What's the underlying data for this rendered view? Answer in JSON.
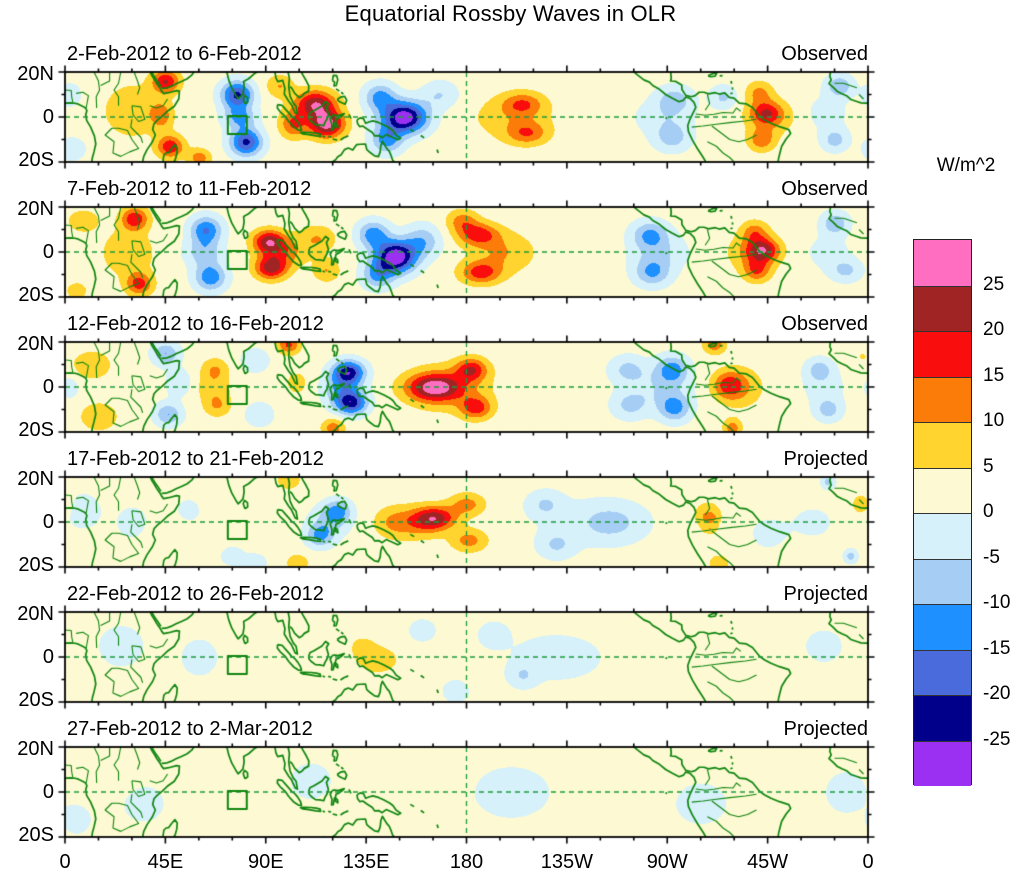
{
  "title": "Equatorial Rossby Waves in OLR",
  "colorbar": {
    "unit_label": "W/m^2",
    "tick_labels_top_to_bottom": [
      "25",
      "20",
      "15",
      "10",
      "5",
      "0",
      "-5",
      "-10",
      "-15",
      "-20",
      "-25"
    ],
    "levels_w_per_m2": [
      -25,
      -20,
      -15,
      -10,
      -5,
      0,
      5,
      10,
      15,
      20,
      25
    ],
    "colors_low_to_high": [
      "#9B30F2",
      "#00008B",
      "#4A6BDB",
      "#1E90FF",
      "#A6CDF4",
      "#D6F1FA",
      "#FDFAD3",
      "#FFD42E",
      "#FB7C08",
      "#FA0D0D",
      "#A12424",
      "#FF6EC0"
    ]
  },
  "axes": {
    "x_tick_labels": [
      "0",
      "45E",
      "90E",
      "135E",
      "180",
      "135W",
      "90W",
      "45W",
      "0"
    ],
    "x_tick_lons": [
      0,
      45,
      90,
      135,
      180,
      225,
      270,
      315,
      360
    ],
    "x_minor_step_deg": 15,
    "y_tick_labels": [
      "20N",
      "0",
      "20S"
    ],
    "y_tick_lats": [
      20,
      0,
      -20
    ],
    "y_minor_lats": [
      10,
      -10
    ],
    "lon_range": [
      0,
      360
    ],
    "lat_range": [
      -20,
      20
    ]
  },
  "map_style": {
    "coastline_color": "#108510",
    "gridline_color": "#1d9b3c",
    "dashed_equator": true,
    "dashed_meridian_lon": 180,
    "region_box": {
      "lon_min": 73,
      "lon_max": 81.5,
      "lat_min": -7.5,
      "lat_max": 0.5
    }
  },
  "chart_data": {
    "type": "heatmap",
    "title": "Equatorial Rossby Waves in OLR",
    "unit": "W/m^2",
    "value_levels": [
      -25,
      -20,
      -15,
      -10,
      -5,
      0,
      5,
      10,
      15,
      20,
      25
    ],
    "anomaly_format": "[lon_deg_east_0_360, lat_deg, amplitude_w_per_m2, sigma_lon_deg, sigma_lat_deg]",
    "panels": [
      {
        "date_range": "2-Feb-2012 to 6-Feb-2012",
        "mode": "Observed",
        "base": 2,
        "anomalies": [
          [
            30,
            3,
            7,
            13,
            12
          ],
          [
            2,
            10,
            -6,
            5,
            5
          ],
          [
            3,
            -14,
            -6,
            6,
            5
          ],
          [
            45,
            16,
            18,
            6,
            5
          ],
          [
            47,
            -13,
            17,
            6,
            5
          ],
          [
            43,
            1,
            10,
            5,
            6
          ],
          [
            60,
            -18,
            11,
            5,
            4
          ],
          [
            77,
            10,
            -23,
            7,
            6
          ],
          [
            81,
            -11,
            -23,
            7,
            6
          ],
          [
            78,
            0,
            -13,
            7,
            5
          ],
          [
            112,
            6,
            22,
            9,
            6
          ],
          [
            117,
            -3,
            25,
            8,
            6
          ],
          [
            102,
            -3,
            13,
            6,
            6
          ],
          [
            96,
            14,
            8,
            6,
            5
          ],
          [
            152,
            0,
            -31,
            10,
            7
          ],
          [
            141,
            9,
            -14,
            7,
            6
          ],
          [
            144,
            -10,
            -14,
            7,
            6
          ],
          [
            168,
            10,
            -7,
            8,
            6
          ],
          [
            205,
            6,
            11,
            9,
            5
          ],
          [
            207,
            -7,
            11,
            9,
            5
          ],
          [
            200,
            0,
            6,
            18,
            10
          ],
          [
            273,
            8,
            -9,
            8,
            6
          ],
          [
            272,
            -9,
            -9,
            8,
            6
          ],
          [
            268,
            0,
            -5,
            13,
            8
          ],
          [
            295,
            9,
            -8,
            6,
            5
          ],
          [
            314,
            2,
            13,
            7,
            5
          ],
          [
            312,
            -10,
            11,
            6,
            5
          ],
          [
            311,
            11,
            9,
            6,
            5
          ],
          [
            316,
            0,
            7,
            11,
            8
          ],
          [
            347,
            14,
            -11,
            6,
            5
          ],
          [
            345,
            -10,
            -9,
            6,
            5
          ],
          [
            341,
            2,
            -4,
            10,
            8
          ]
        ]
      },
      {
        "date_range": "7-Feb-2012 to 11-Feb-2012",
        "mode": "Observed",
        "base": 2,
        "anomalies": [
          [
            8,
            14,
            7,
            7,
            5
          ],
          [
            5,
            -17,
            6,
            5,
            4
          ],
          [
            28,
            0,
            8,
            11,
            10
          ],
          [
            31,
            15,
            17,
            6,
            5
          ],
          [
            33,
            -14,
            15,
            6,
            5
          ],
          [
            63,
            10,
            -17,
            7,
            6
          ],
          [
            65,
            -11,
            -16,
            7,
            6
          ],
          [
            62,
            0,
            -10,
            8,
            6
          ],
          [
            91,
            5,
            19,
            7,
            5
          ],
          [
            92,
            -7,
            19,
            7,
            5
          ],
          [
            97,
            0,
            11,
            10,
            7
          ],
          [
            113,
            6,
            8,
            8,
            6
          ],
          [
            117,
            -8,
            8,
            6,
            5
          ],
          [
            148,
            -2,
            -32,
            9,
            7
          ],
          [
            138,
            8,
            -15,
            7,
            6
          ],
          [
            140,
            -10,
            -13,
            7,
            6
          ],
          [
            160,
            5,
            -11,
            8,
            7
          ],
          [
            178,
            14,
            10,
            7,
            5
          ],
          [
            185,
            8,
            15,
            9,
            5
          ],
          [
            186,
            -9,
            15,
            9,
            5
          ],
          [
            196,
            0,
            8,
            14,
            9
          ],
          [
            262,
            8,
            -12,
            8,
            6
          ],
          [
            263,
            -9,
            -12,
            8,
            6
          ],
          [
            266,
            0,
            -7,
            12,
            8
          ],
          [
            313,
            1,
            17,
            7,
            5
          ],
          [
            310,
            -8,
            12,
            6,
            5
          ],
          [
            309,
            9,
            10,
            6,
            5
          ],
          [
            308,
            0,
            8,
            11,
            8
          ],
          [
            345,
            13,
            -11,
            6,
            5
          ],
          [
            350,
            -8,
            -8,
            7,
            5
          ],
          [
            342,
            0,
            -4,
            10,
            8
          ]
        ]
      },
      {
        "date_range": "12-Feb-2012 to 16-Feb-2012",
        "mode": "Observed",
        "base": 2,
        "anomalies": [
          [
            12,
            10,
            8,
            8,
            6
          ],
          [
            15,
            -13,
            8,
            8,
            6
          ],
          [
            2,
            0,
            -5,
            4,
            5
          ],
          [
            45,
            15,
            -12,
            6,
            5
          ],
          [
            46,
            -12,
            -12,
            6,
            5
          ],
          [
            51,
            2,
            -6,
            6,
            6
          ],
          [
            67,
            8,
            8,
            6,
            5
          ],
          [
            68,
            -8,
            8,
            6,
            5
          ],
          [
            66,
            0,
            6,
            8,
            6
          ],
          [
            85,
            12,
            -7,
            6,
            5
          ],
          [
            87,
            -12,
            -7,
            6,
            5
          ],
          [
            100,
            19,
            14,
            5,
            4
          ],
          [
            104,
            2,
            4,
            8,
            8
          ],
          [
            127,
            7,
            -23,
            7,
            5
          ],
          [
            128,
            -7,
            -23,
            7,
            5
          ],
          [
            124,
            0,
            -12,
            9,
            7
          ],
          [
            120,
            -18,
            11,
            5,
            4
          ],
          [
            165,
            0,
            21,
            12,
            6
          ],
          [
            182,
            8,
            16,
            7,
            5
          ],
          [
            184,
            -9,
            15,
            7,
            5
          ],
          [
            172,
            0,
            8,
            18,
            10
          ],
          [
            252,
            8,
            -8,
            8,
            6
          ],
          [
            253,
            -8,
            -8,
            8,
            6
          ],
          [
            272,
            8,
            -14,
            7,
            6
          ],
          [
            273,
            -9,
            -14,
            7,
            6
          ],
          [
            266,
            0,
            -6,
            14,
            9
          ],
          [
            297,
            1,
            13,
            7,
            6
          ],
          [
            299,
            -18,
            11,
            4,
            4
          ],
          [
            291,
            19,
            11,
            5,
            4
          ],
          [
            303,
            0,
            7,
            10,
            9
          ],
          [
            338,
            8,
            -9,
            6,
            5
          ],
          [
            342,
            -10,
            -9,
            6,
            5
          ],
          [
            340,
            0,
            -4,
            10,
            8
          ],
          [
            357,
            14,
            3,
            5,
            5
          ]
        ]
      },
      {
        "date_range": "17-Feb-2012 to 21-Feb-2012",
        "mode": "Projected",
        "base": 2,
        "anomalies": [
          [
            8,
            5,
            -5,
            8,
            8
          ],
          [
            30,
            0,
            -4,
            8,
            8
          ],
          [
            55,
            5,
            -4,
            6,
            6
          ],
          [
            75,
            -15,
            -6,
            5,
            4
          ],
          [
            85,
            -18,
            -6,
            5,
            4
          ],
          [
            48,
            -5,
            2,
            10,
            8
          ],
          [
            100,
            19,
            8,
            5,
            4
          ],
          [
            122,
            5,
            -13,
            6,
            5
          ],
          [
            114,
            -6,
            -12,
            6,
            5
          ],
          [
            118,
            0,
            -7,
            9,
            7
          ],
          [
            104,
            -18,
            7,
            5,
            4
          ],
          [
            166,
            2,
            17,
            9,
            5
          ],
          [
            158,
            0,
            10,
            12,
            7
          ],
          [
            180,
            8,
            10,
            8,
            5
          ],
          [
            181,
            -8,
            10,
            8,
            5
          ],
          [
            146,
            0,
            6,
            8,
            7
          ],
          [
            215,
            8,
            -7,
            8,
            6
          ],
          [
            220,
            -10,
            -7,
            8,
            6
          ],
          [
            245,
            0,
            -7,
            14,
            8
          ],
          [
            235,
            0,
            -3,
            25,
            12
          ],
          [
            288,
            3,
            8,
            6,
            6
          ],
          [
            289,
            2,
            5,
            3,
            2
          ],
          [
            289,
            -3,
            5,
            3,
            2
          ],
          [
            293,
            -18,
            6,
            5,
            4
          ],
          [
            315,
            -5,
            -4,
            8,
            7
          ],
          [
            342,
            18,
            -9,
            3,
            3
          ],
          [
            352,
            -15,
            -9,
            3,
            3
          ],
          [
            357,
            8,
            6,
            5,
            5
          ],
          [
            335,
            0,
            -3,
            12,
            9
          ]
        ]
      },
      {
        "date_range": "22-Feb-2012 to 26-Feb-2012",
        "mode": "Projected",
        "base": 1.5,
        "anomalies": [
          [
            140,
            -1,
            8,
            9,
            6
          ],
          [
            133,
            5,
            5,
            6,
            5
          ],
          [
            25,
            5,
            -4,
            10,
            9
          ],
          [
            60,
            0,
            -4,
            8,
            8
          ],
          [
            90,
            5,
            2,
            8,
            8
          ],
          [
            192,
            10,
            -6,
            6,
            5
          ],
          [
            205,
            -8,
            -6,
            6,
            5
          ],
          [
            220,
            0,
            -4,
            20,
            10
          ],
          [
            270,
            0,
            2,
            10,
            9
          ],
          [
            300,
            0,
            2,
            10,
            9
          ],
          [
            340,
            5,
            -4,
            8,
            7
          ],
          [
            2,
            -10,
            2,
            6,
            6
          ],
          [
            115,
            -15,
            2,
            6,
            5
          ],
          [
            160,
            12,
            -4,
            6,
            5
          ],
          [
            175,
            -15,
            -4,
            6,
            5
          ]
        ]
      },
      {
        "date_range": "27-Feb-2012 to 2-Mar-2012",
        "mode": "Projected",
        "base": 1,
        "anomalies": [
          [
            20,
            8,
            2.5,
            10,
            8
          ],
          [
            35,
            -5,
            -3.5,
            8,
            7
          ],
          [
            5,
            -12,
            -3,
            6,
            6
          ],
          [
            75,
            0,
            2.5,
            12,
            10
          ],
          [
            110,
            5,
            -3.5,
            8,
            7
          ],
          [
            130,
            -8,
            2.5,
            8,
            7
          ],
          [
            165,
            5,
            2.5,
            10,
            8
          ],
          [
            200,
            0,
            -3.5,
            15,
            10
          ],
          [
            250,
            5,
            2.5,
            10,
            8
          ],
          [
            285,
            -5,
            -3.5,
            10,
            8
          ],
          [
            315,
            5,
            2.5,
            10,
            8
          ],
          [
            350,
            0,
            -3.5,
            8,
            8
          ]
        ]
      }
    ]
  }
}
